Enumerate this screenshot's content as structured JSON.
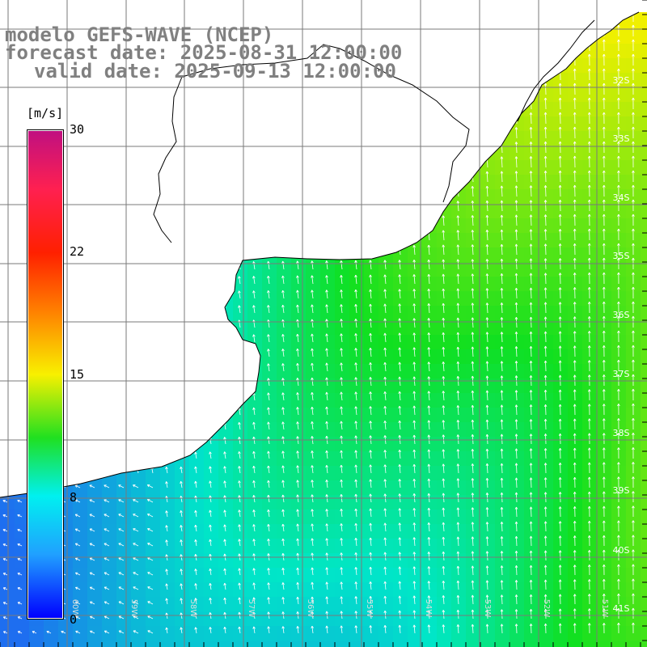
{
  "header": {
    "line1": "modelo GEFS-WAVE (NCEP)",
    "line2": "forecast date: 2025-08-31 12:00:00",
    "line3": "valid date: 2025-09-13 12:00:00"
  },
  "colorbar": {
    "unit": "[m/s]",
    "ticks": [
      "30",
      "22",
      "15",
      "8",
      "0"
    ],
    "tick_values": [
      30,
      22,
      15,
      8,
      0
    ],
    "min": 0,
    "max": 30
  },
  "map": {
    "lat_labels": [
      "32S",
      "33S",
      "34S",
      "35S",
      "36S",
      "37S",
      "38S",
      "39S",
      "40S",
      "41S"
    ],
    "lon_labels": [
      "60W",
      "59W",
      "58W",
      "57W",
      "56W",
      "55W",
      "54W",
      "53W",
      "52W",
      "51W"
    ],
    "lon_range": [
      -62.5,
      -51.0
    ],
    "lat_range": [
      -41.5,
      -30.5
    ],
    "field": "wind speed",
    "colors": {
      "ocean_low": "#1e6ef0",
      "ocean_mid": "#00e6c8",
      "ocean_green": "#10e020",
      "ocean_high": "#f0f000",
      "land": "#ffffff",
      "grid": "#7a7a7a",
      "coast": "#000000",
      "arrows": "#ffffff",
      "header_text": "#808080"
    }
  }
}
